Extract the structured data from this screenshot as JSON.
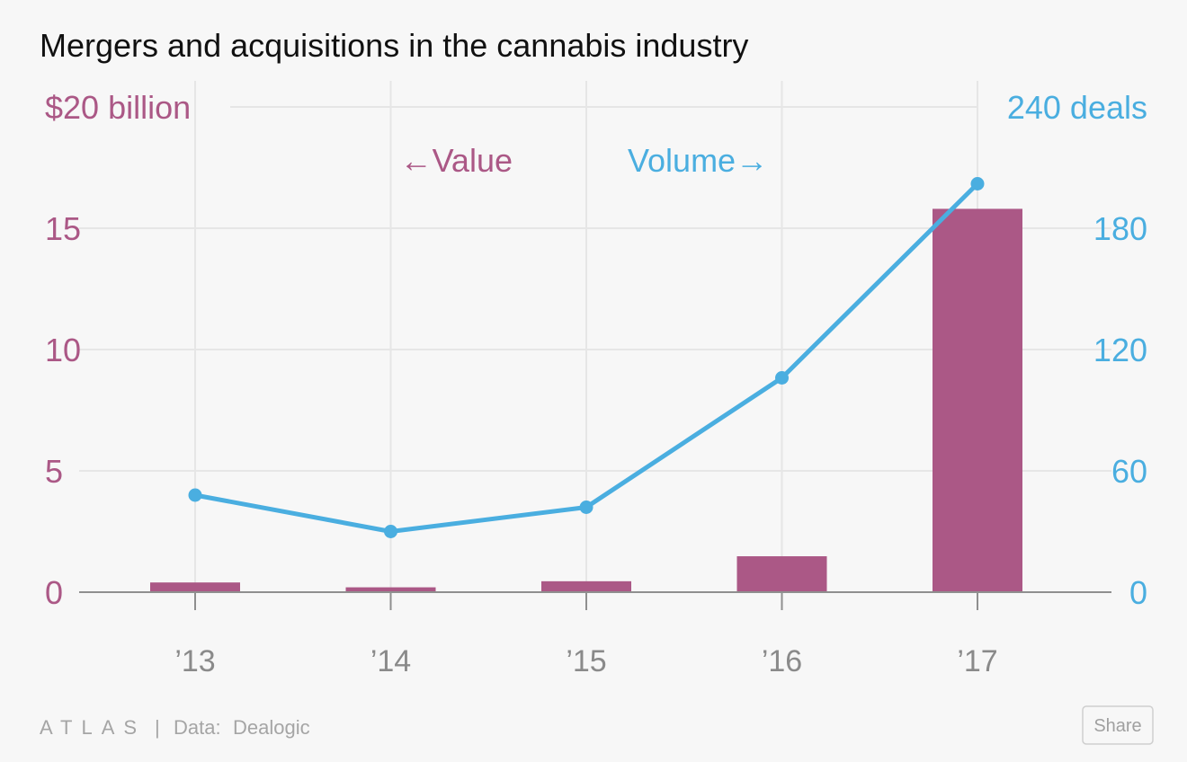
{
  "title": "Mergers and acquisitions in the cannabis industry",
  "colors": {
    "value": "#ab5886",
    "volume": "#4aaee0",
    "tick_text": "#8a8a8a",
    "title": "#111111"
  },
  "legend": {
    "value_label": "←Value",
    "volume_label": "Volume→"
  },
  "chart_data": {
    "type": "bar+line",
    "title": "Mergers and acquisitions in the cannabis industry",
    "categories": [
      "’13",
      "’14",
      "’15",
      "’16",
      "’17"
    ],
    "series": [
      {
        "name": "Value",
        "type": "bar",
        "axis": "left",
        "unit": "billion USD",
        "values": [
          0.4,
          0.2,
          0.45,
          1.48,
          15.8
        ]
      },
      {
        "name": "Volume",
        "type": "line",
        "axis": "right",
        "unit": "deals",
        "values": [
          48,
          30,
          42,
          106,
          202
        ]
      }
    ],
    "left_axis": {
      "ylim": [
        0,
        20
      ],
      "ticks": [
        0,
        5,
        10,
        15,
        20
      ],
      "tick_labels": [
        "0",
        "5",
        "10",
        "15",
        "$20 billion"
      ]
    },
    "right_axis": {
      "ylim": [
        0,
        240
      ],
      "ticks": [
        0,
        60,
        120,
        180,
        240
      ],
      "tick_labels": [
        "0",
        "60",
        "120",
        "180",
        "240 deals"
      ]
    },
    "grid": true
  },
  "footer": {
    "brand": "ATLAS",
    "separator": "|",
    "source_label": "Data:",
    "source": "Dealogic",
    "share_label": "Share"
  }
}
